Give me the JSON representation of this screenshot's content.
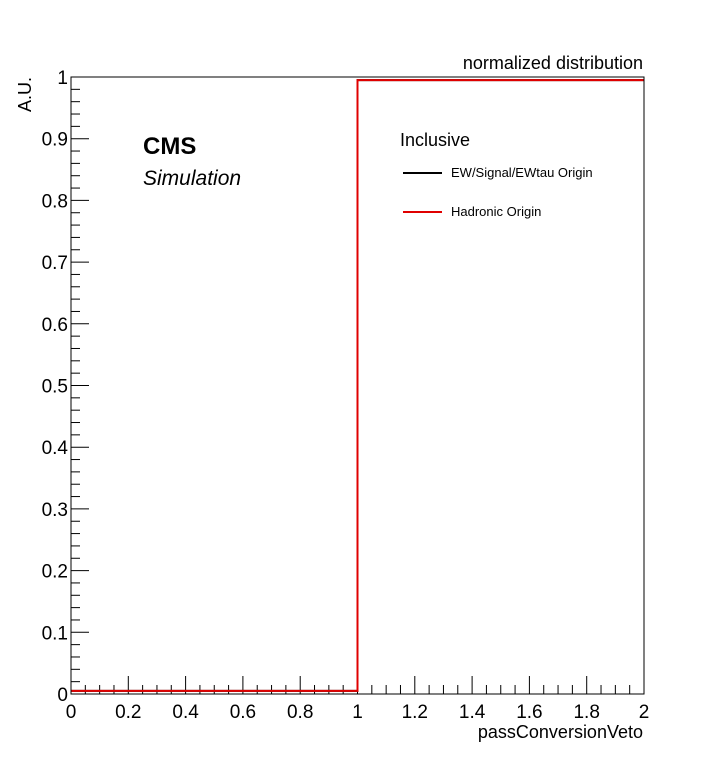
{
  "chart_data": {
    "type": "line",
    "title": "normalized distribution",
    "xlabel": "passConversionVeto",
    "ylabel": "A.U.",
    "xlim": [
      0,
      2
    ],
    "ylim": [
      0,
      1
    ],
    "xticks": [
      "0",
      "0.2",
      "0.4",
      "0.6",
      "0.8",
      "1",
      "1.2",
      "1.4",
      "1.6",
      "1.8",
      "2"
    ],
    "yticks": [
      "0",
      "0.1",
      "0.2",
      "0.3",
      "0.4",
      "0.5",
      "0.6",
      "0.7",
      "0.8",
      "0.9",
      "1"
    ],
    "bin_edges": [
      0,
      1,
      2
    ],
    "series": [
      {
        "name": "EW/Signal/EWtau Origin",
        "color": "#000000",
        "values": [
          0.005,
          0.995
        ]
      },
      {
        "name": "Hadronic Origin",
        "color": "#e00000",
        "values": [
          0.005,
          0.995
        ]
      }
    ],
    "legend": {
      "position": "top-right",
      "header": "Inclusive"
    },
    "annotations": {
      "experiment": "CMS",
      "label": "Simulation"
    }
  }
}
